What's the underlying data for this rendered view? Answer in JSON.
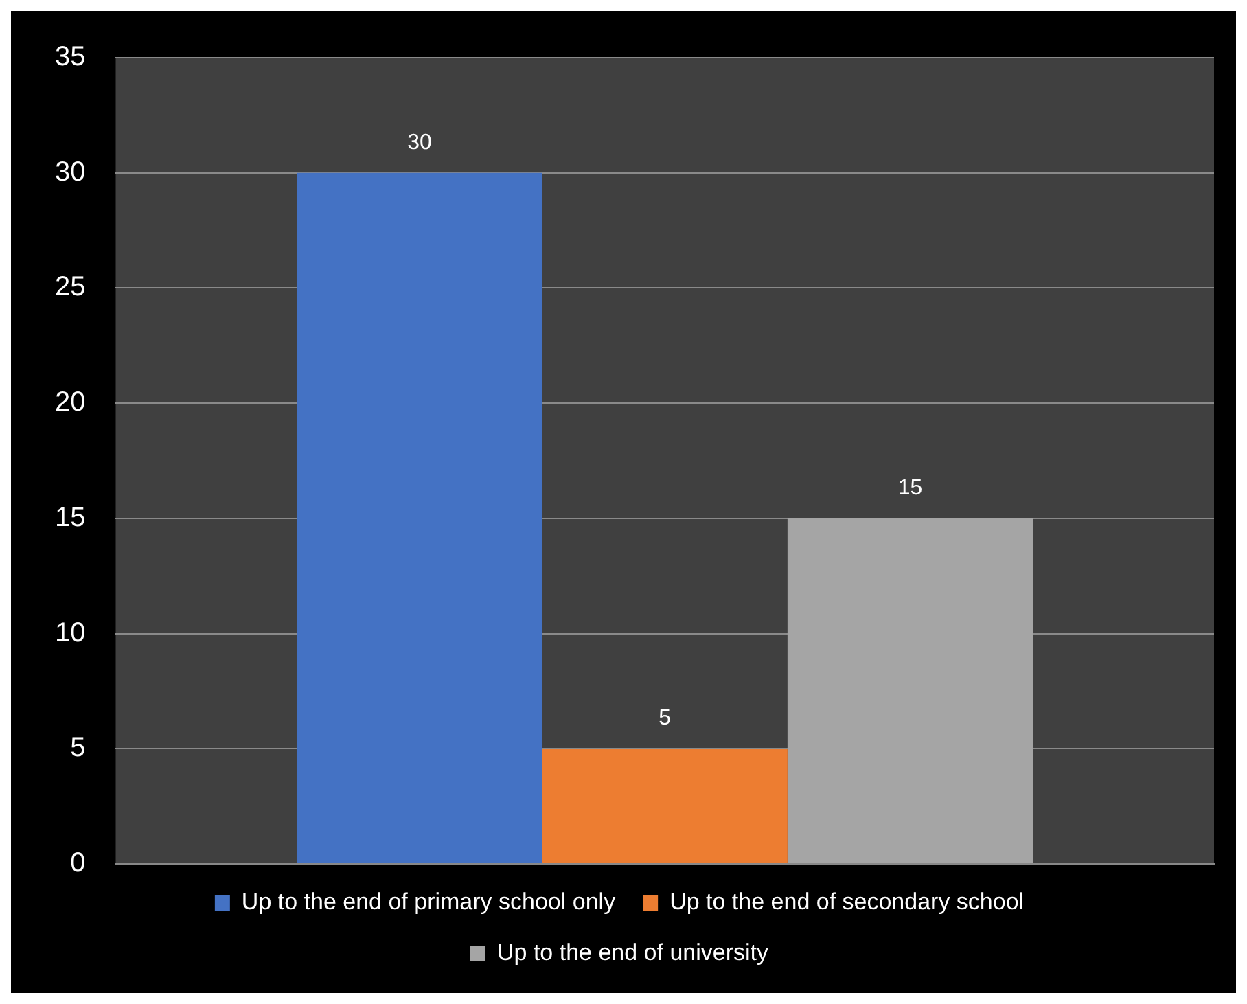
{
  "chart_data": {
    "type": "bar",
    "categories": [
      null
    ],
    "series": [
      {
        "name": "Up to the end of primary school only",
        "color": "#4472c4",
        "values": [
          30
        ]
      },
      {
        "name": "Up to the end of secondary school",
        "color": "#ed7d31",
        "values": [
          5
        ]
      },
      {
        "name": "Up to the end of university",
        "color": "#a5a5a5",
        "values": [
          15
        ]
      }
    ],
    "ylim": [
      0,
      35
    ],
    "yticks": [
      0,
      5,
      10,
      15,
      20,
      25,
      30,
      35
    ],
    "grid": "y",
    "legend": "bottom",
    "data_labels": true
  }
}
